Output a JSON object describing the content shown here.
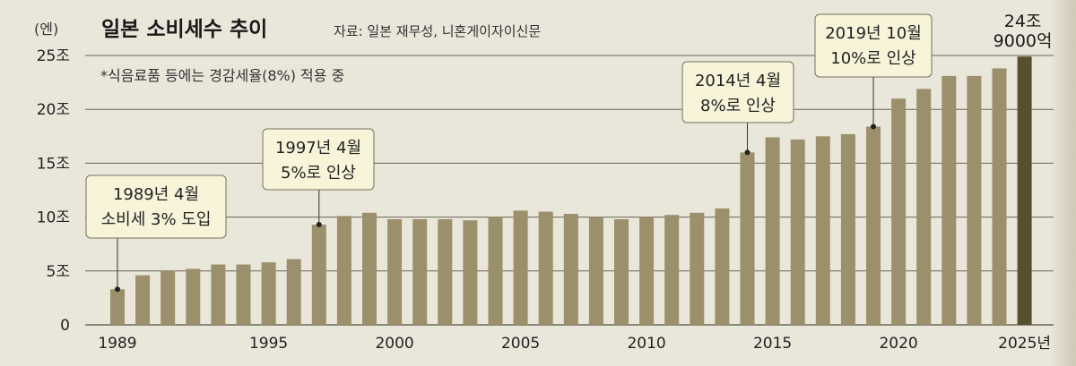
{
  "chart_data": {
    "type": "bar",
    "title": "일본 소비세수 추이",
    "source": "자료: 일본 재무성, 니혼게이자이신문",
    "note": "*식음료품 등에는 경감세율(8%) 적용 중",
    "unit_label": "(엔)",
    "ylim": [
      0,
      25
    ],
    "y_ticks": [
      {
        "value": 0,
        "label": "0"
      },
      {
        "value": 5,
        "label": "5조"
      },
      {
        "value": 10,
        "label": "10조"
      },
      {
        "value": 15,
        "label": "15조"
      },
      {
        "value": 20,
        "label": "20조"
      },
      {
        "value": 25,
        "label": "25조"
      }
    ],
    "x_ticks": [
      {
        "year": 1989,
        "label": "1989"
      },
      {
        "year": 1995,
        "label": "1995"
      },
      {
        "year": 2000,
        "label": "2000"
      },
      {
        "year": 2005,
        "label": "2005"
      },
      {
        "year": 2010,
        "label": "2010"
      },
      {
        "year": 2015,
        "label": "2015"
      },
      {
        "year": 2020,
        "label": "2020"
      },
      {
        "year": 2025,
        "label": "2025년"
      }
    ],
    "years": [
      1989,
      1990,
      1991,
      1992,
      1993,
      1994,
      1995,
      1996,
      1997,
      1998,
      1999,
      2000,
      2001,
      2002,
      2003,
      2004,
      2005,
      2006,
      2007,
      2008,
      2009,
      2010,
      2011,
      2012,
      2013,
      2014,
      2015,
      2016,
      2017,
      2018,
      2019,
      2020,
      2021,
      2022,
      2023,
      2024,
      2025
    ],
    "values": [
      3.3,
      4.6,
      5.0,
      5.2,
      5.6,
      5.6,
      5.8,
      6.1,
      9.3,
      10.1,
      10.4,
      9.8,
      9.8,
      9.8,
      9.7,
      10.0,
      10.6,
      10.5,
      10.3,
      10.0,
      9.8,
      10.0,
      10.2,
      10.4,
      10.8,
      16.0,
      17.4,
      17.2,
      17.5,
      17.7,
      18.4,
      21.0,
      21.9,
      23.1,
      23.1,
      23.8,
      24.9
    ],
    "highlight_index": 36,
    "highlight_label": [
      "24조",
      "9000억"
    ],
    "annotations": [
      {
        "year": 1989,
        "lines": [
          "1989년 4월",
          "소비세 3% 도입"
        ]
      },
      {
        "year": 1997,
        "lines": [
          "1997년 4월",
          "5%로 인상"
        ]
      },
      {
        "year": 2014,
        "lines": [
          "2014년 4월",
          "8%로 인상"
        ]
      },
      {
        "year": 2019,
        "lines": [
          "2019년 10월",
          "10%로 인상"
        ]
      }
    ],
    "colors": {
      "bar": "#9c8f6c",
      "bar_highlight": "#57502f",
      "grid": "#6a6656",
      "box_fill": "#f7f4d9",
      "box_border": "#777060"
    }
  }
}
